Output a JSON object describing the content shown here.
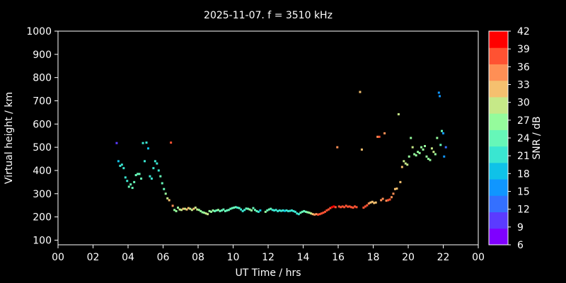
{
  "chart_data": {
    "type": "scatter",
    "title": "2025-11-07. f = 3510 kHz",
    "xlabel": "UT Time / hrs",
    "ylabel": "Virtual height / km",
    "xlim": [
      0,
      24
    ],
    "ylim": [
      80,
      1000
    ],
    "xticks": [
      "00",
      "02",
      "04",
      "06",
      "08",
      "10",
      "12",
      "14",
      "16",
      "18",
      "20",
      "22",
      "00"
    ],
    "yticks": [
      100,
      200,
      300,
      400,
      500,
      600,
      700,
      800,
      900,
      1000
    ],
    "grid": false,
    "colorbar": {
      "label": "SNR / dB",
      "ticks": [
        6,
        9,
        12,
        15,
        18,
        21,
        24,
        27,
        30,
        33,
        36,
        39,
        42
      ],
      "colors": [
        "#7f00ff",
        "#5b3bff",
        "#3470ff",
        "#1096ff",
        "#0fc2e8",
        "#3ae6d1",
        "#66f7b8",
        "#95fb9c",
        "#c6e988",
        "#f5c06f",
        "#ff8f55",
        "#ff5232",
        "#ff0000"
      ]
    },
    "series": [
      {
        "points": [
          [
            3.35,
            518,
            9
          ],
          [
            3.45,
            440,
            18
          ],
          [
            3.55,
            420,
            20
          ],
          [
            3.65,
            425,
            20
          ],
          [
            3.75,
            410,
            20
          ],
          [
            3.85,
            370,
            22
          ],
          [
            3.95,
            355,
            22
          ],
          [
            4.05,
            330,
            24
          ],
          [
            4.15,
            340,
            24
          ],
          [
            4.25,
            325,
            25
          ],
          [
            4.35,
            350,
            24
          ],
          [
            4.45,
            380,
            23
          ],
          [
            4.55,
            385,
            23
          ],
          [
            4.65,
            385,
            24
          ],
          [
            4.75,
            365,
            23
          ],
          [
            4.85,
            518,
            22
          ],
          [
            4.95,
            440,
            20
          ],
          [
            5.05,
            520,
            20
          ],
          [
            5.15,
            495,
            19
          ],
          [
            5.25,
            375,
            20
          ],
          [
            5.35,
            365,
            20
          ],
          [
            5.45,
            410,
            21
          ],
          [
            5.55,
            440,
            22
          ],
          [
            5.65,
            430,
            22
          ],
          [
            5.75,
            400,
            22
          ],
          [
            5.85,
            375,
            23
          ],
          [
            5.95,
            345,
            24
          ],
          [
            6.05,
            320,
            25
          ],
          [
            6.15,
            300,
            27
          ],
          [
            6.25,
            280,
            29
          ],
          [
            6.35,
            272,
            31
          ],
          [
            6.45,
            520,
            39
          ],
          [
            6.55,
            248,
            36
          ],
          [
            6.65,
            230,
            28
          ],
          [
            6.75,
            225,
            26
          ],
          [
            6.85,
            240,
            28
          ],
          [
            6.95,
            232,
            29
          ],
          [
            7.05,
            230,
            30
          ],
          [
            7.15,
            235,
            31
          ],
          [
            7.25,
            235,
            30
          ],
          [
            7.35,
            232,
            32
          ],
          [
            7.45,
            238,
            31
          ],
          [
            7.55,
            235,
            30
          ],
          [
            7.65,
            230,
            30
          ],
          [
            7.75,
            235,
            31
          ],
          [
            7.85,
            240,
            30
          ],
          [
            7.95,
            232,
            29
          ],
          [
            8.05,
            230,
            28
          ],
          [
            8.15,
            225,
            28
          ],
          [
            8.25,
            220,
            27
          ],
          [
            8.35,
            218,
            28
          ],
          [
            8.45,
            215,
            30
          ],
          [
            8.55,
            212,
            29
          ],
          [
            8.65,
            225,
            27
          ],
          [
            8.75,
            222,
            26
          ],
          [
            8.85,
            228,
            27
          ],
          [
            8.95,
            225,
            25
          ],
          [
            9.05,
            228,
            25
          ],
          [
            9.15,
            230,
            26
          ],
          [
            9.25,
            225,
            25
          ],
          [
            9.35,
            228,
            24
          ],
          [
            9.45,
            232,
            24
          ],
          [
            9.55,
            225,
            23
          ],
          [
            9.65,
            228,
            23
          ],
          [
            9.75,
            230,
            24
          ],
          [
            9.85,
            235,
            25
          ],
          [
            9.95,
            238,
            24
          ],
          [
            10.05,
            240,
            23
          ],
          [
            10.15,
            242,
            23
          ],
          [
            10.25,
            240,
            22
          ],
          [
            10.35,
            238,
            23
          ],
          [
            10.45,
            232,
            22
          ],
          [
            10.55,
            225,
            21
          ],
          [
            10.65,
            230,
            22
          ],
          [
            10.75,
            236,
            24
          ],
          [
            10.85,
            235,
            25
          ],
          [
            10.95,
            232,
            27
          ],
          [
            11.05,
            228,
            26
          ],
          [
            11.15,
            238,
            25
          ],
          [
            11.25,
            230,
            24
          ],
          [
            11.35,
            225,
            24
          ],
          [
            11.45,
            222,
            21
          ],
          [
            11.55,
            228,
            18
          ],
          [
            11.85,
            222,
            26
          ],
          [
            11.95,
            228,
            25
          ],
          [
            12.05,
            232,
            23
          ],
          [
            12.15,
            235,
            23
          ],
          [
            12.25,
            230,
            22
          ],
          [
            12.35,
            228,
            22
          ],
          [
            12.45,
            230,
            21
          ],
          [
            12.55,
            225,
            20
          ],
          [
            12.65,
            228,
            20
          ],
          [
            12.75,
            226,
            20
          ],
          [
            12.85,
            228,
            20
          ],
          [
            12.95,
            226,
            19
          ],
          [
            13.05,
            228,
            20
          ],
          [
            13.15,
            225,
            20
          ],
          [
            13.25,
            226,
            20
          ],
          [
            13.35,
            228,
            21
          ],
          [
            13.45,
            225,
            20
          ],
          [
            13.55,
            222,
            21
          ],
          [
            13.65,
            215,
            21
          ],
          [
            13.75,
            212,
            22
          ],
          [
            13.85,
            218,
            23
          ],
          [
            13.95,
            222,
            23
          ],
          [
            14.05,
            225,
            24
          ],
          [
            14.15,
            222,
            25
          ],
          [
            14.25,
            220,
            26
          ],
          [
            14.35,
            218,
            28
          ],
          [
            14.45,
            215,
            30
          ],
          [
            14.55,
            212,
            33
          ],
          [
            14.65,
            210,
            35
          ],
          [
            14.75,
            212,
            36
          ],
          [
            14.85,
            210,
            37
          ],
          [
            14.95,
            212,
            38
          ],
          [
            15.05,
            215,
            39
          ],
          [
            15.15,
            218,
            39
          ],
          [
            15.25,
            222,
            38
          ],
          [
            15.35,
            228,
            38
          ],
          [
            15.45,
            232,
            38
          ],
          [
            15.55,
            238,
            39
          ],
          [
            15.65,
            242,
            40
          ],
          [
            15.75,
            245,
            40
          ],
          [
            15.85,
            242,
            39
          ],
          [
            15.95,
            500,
            36
          ],
          [
            16.05,
            245,
            39
          ],
          [
            16.15,
            242,
            39
          ],
          [
            16.25,
            245,
            38
          ],
          [
            16.35,
            242,
            39
          ],
          [
            16.45,
            248,
            38
          ],
          [
            16.55,
            244,
            38
          ],
          [
            16.65,
            245,
            39
          ],
          [
            16.75,
            242,
            39
          ],
          [
            16.85,
            240,
            38
          ],
          [
            16.95,
            245,
            39
          ],
          [
            17.05,
            242,
            38
          ],
          [
            17.25,
            738,
            31
          ],
          [
            17.35,
            490,
            33
          ],
          [
            17.45,
            240,
            38
          ],
          [
            17.55,
            245,
            38
          ],
          [
            17.65,
            250,
            37
          ],
          [
            17.75,
            258,
            35
          ],
          [
            17.85,
            262,
            33
          ],
          [
            17.95,
            265,
            32
          ],
          [
            18.05,
            260,
            32
          ],
          [
            18.15,
            262,
            33
          ],
          [
            18.25,
            545,
            36
          ],
          [
            18.35,
            545,
            37
          ],
          [
            18.45,
            272,
            35
          ],
          [
            18.55,
            278,
            34
          ],
          [
            18.65,
            560,
            35
          ],
          [
            18.75,
            270,
            36
          ],
          [
            18.85,
            272,
            37
          ],
          [
            18.95,
            275,
            37
          ],
          [
            19.05,
            285,
            36
          ],
          [
            19.15,
            300,
            34
          ],
          [
            19.25,
            320,
            33
          ],
          [
            19.35,
            322,
            33
          ],
          [
            19.45,
            642,
            30
          ],
          [
            19.55,
            350,
            32
          ],
          [
            19.65,
            415,
            31
          ],
          [
            19.75,
            440,
            29
          ],
          [
            19.85,
            430,
            29
          ],
          [
            19.95,
            425,
            30
          ],
          [
            20.05,
            460,
            28
          ],
          [
            20.15,
            540,
            28
          ],
          [
            20.25,
            500,
            29
          ],
          [
            20.35,
            470,
            28
          ],
          [
            20.45,
            465,
            28
          ],
          [
            20.55,
            480,
            27
          ],
          [
            20.65,
            475,
            27
          ],
          [
            20.75,
            500,
            28
          ],
          [
            20.85,
            490,
            27
          ],
          [
            20.95,
            505,
            28
          ],
          [
            21.05,
            460,
            27
          ],
          [
            21.15,
            450,
            28
          ],
          [
            21.25,
            445,
            28
          ],
          [
            21.35,
            495,
            29
          ],
          [
            21.45,
            480,
            30
          ],
          [
            21.55,
            470,
            28
          ],
          [
            21.65,
            540,
            26
          ],
          [
            21.75,
            735,
            15
          ],
          [
            21.8,
            720,
            16
          ],
          [
            21.85,
            510,
            24
          ],
          [
            21.92,
            570,
            23
          ],
          [
            22.0,
            560,
            17
          ],
          [
            22.05,
            460,
            15
          ],
          [
            22.15,
            500,
            14
          ]
        ]
      }
    ]
  }
}
